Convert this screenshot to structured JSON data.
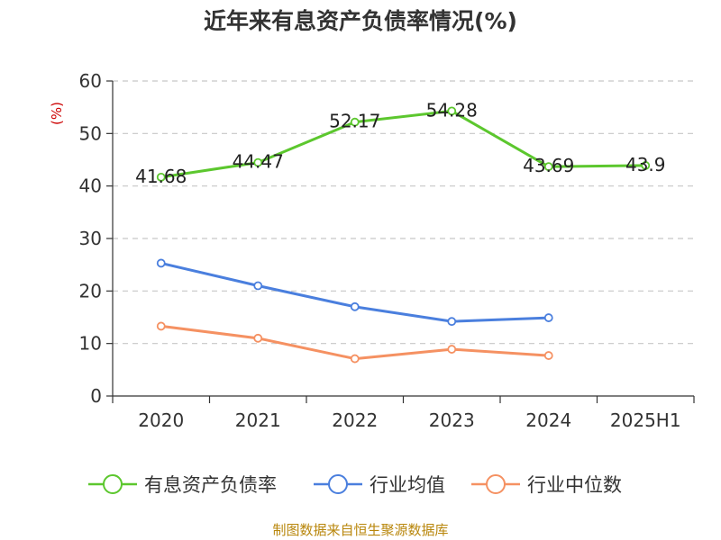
{
  "chart_data": {
    "type": "line",
    "title": "近年来有息资产负债率情况(%)",
    "unit_label": "(%)",
    "categories": [
      "2020",
      "2021",
      "2022",
      "2023",
      "2024",
      "2025H1"
    ],
    "ylim": [
      0,
      60
    ],
    "yticks": [
      0,
      10,
      20,
      30,
      40,
      50,
      60
    ],
    "grid": true,
    "legend_position": "bottom",
    "series": [
      {
        "name": "有息资产负债率",
        "color": "#5cc72e",
        "values": [
          41.68,
          44.47,
          52.17,
          54.28,
          43.69,
          43.9
        ],
        "labels": [
          "41.68",
          "44.47",
          "52.17",
          "54.28",
          "43.69",
          "43.9"
        ]
      },
      {
        "name": "行业均值",
        "color": "#4a7fde",
        "values": [
          25.3,
          21.0,
          17.0,
          14.2,
          14.9,
          null
        ]
      },
      {
        "name": "行业中位数",
        "color": "#f59162",
        "values": [
          13.3,
          11.0,
          7.1,
          8.9,
          7.7,
          null
        ]
      }
    ],
    "source": "制图数据来自恒生聚源数据库"
  }
}
